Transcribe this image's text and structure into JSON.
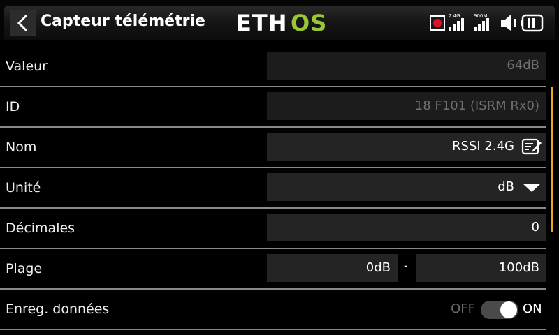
{
  "header": {
    "title": "Capteur télémétrie",
    "logo_text_left": "ETH",
    "logo_text_right": "OS",
    "logo_color": "#9ac636",
    "signal1_label": "2.4G",
    "signal2_label": "900M",
    "icons": [
      "back-chevron-icon",
      "record-icon",
      "signal-icon",
      "speaker-muted-icon",
      "battery-icon"
    ]
  },
  "rows": {
    "valeur": {
      "label": "Valeur",
      "value": "64dB"
    },
    "id": {
      "label": "ID",
      "value": "18 F101 (ISRM Rx0)"
    },
    "nom": {
      "label": "Nom",
      "value": "RSSI 2.4G",
      "icon": "edit-icon"
    },
    "unite": {
      "label": "Unité",
      "value": "dB",
      "icon": "dropdown-arrow-icon"
    },
    "decimales": {
      "label": "Décimales",
      "value": "0"
    },
    "plage": {
      "label": "Plage",
      "min": "0dB",
      "separator": "-",
      "max": "100dB"
    },
    "enreg": {
      "label": "Enreg. données",
      "off_label": "OFF",
      "on_label": "ON",
      "state": "on"
    }
  },
  "colors": {
    "accent": "#f0a51a",
    "record": "#e0102a",
    "field_bg": "#242424",
    "divider": "#8a8a8a"
  }
}
